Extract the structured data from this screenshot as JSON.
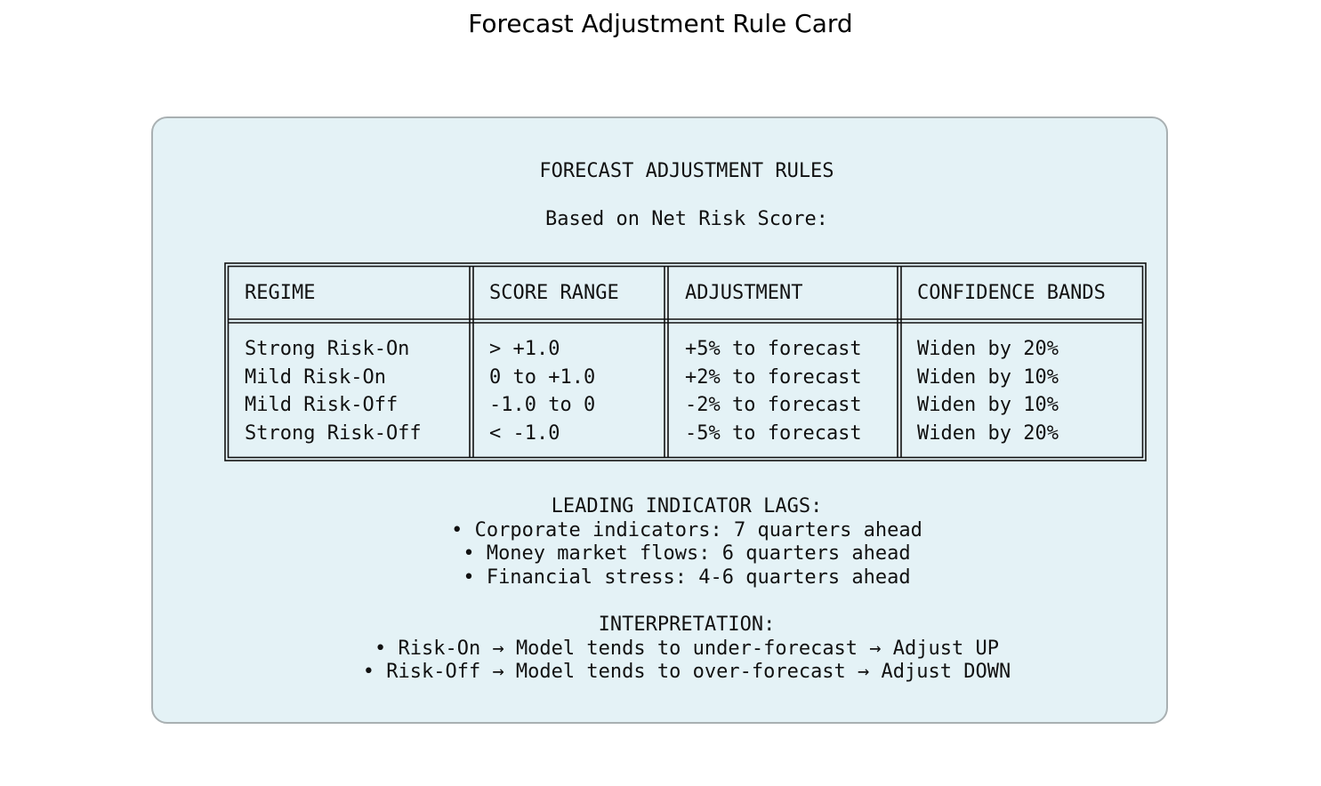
{
  "page": {
    "title": "Forecast Adjustment Rule Card"
  },
  "card": {
    "heading": "FORECAST ADJUSTMENT RULES",
    "subheading": "Based on Net Risk Score:",
    "table": {
      "columns": [
        "REGIME",
        "SCORE RANGE",
        "ADJUSTMENT",
        "CONFIDENCE BANDS"
      ],
      "rows": [
        [
          "Strong Risk-On",
          "> +1.0",
          "+5% to forecast",
          "Widen by 20%"
        ],
        [
          "Mild Risk-On",
          "0 to +1.0",
          "+2% to forecast",
          "Widen by 10%"
        ],
        [
          "Mild Risk-Off",
          "-1.0 to 0",
          "-2% to forecast",
          "Widen by 10%"
        ],
        [
          "Strong Risk-Off",
          "< -1.0",
          "-5% to forecast",
          "Widen by 20%"
        ]
      ]
    },
    "lags": {
      "heading": "LEADING INDICATOR LAGS:",
      "items": [
        "• Corporate indicators: 7 quarters ahead",
        "• Money market flows: 6 quarters ahead",
        "• Financial stress: 4-6 quarters ahead"
      ]
    },
    "interpretation": {
      "heading": "INTERPRETATION:",
      "items": [
        "• Risk-On → Model tends to under-forecast → Adjust UP",
        "• Risk-Off → Model tends to over-forecast → Adjust DOWN"
      ]
    }
  },
  "colors": {
    "card_background": "#e4f2f6",
    "card_border": "#a9b0b2",
    "text": "#111111"
  }
}
